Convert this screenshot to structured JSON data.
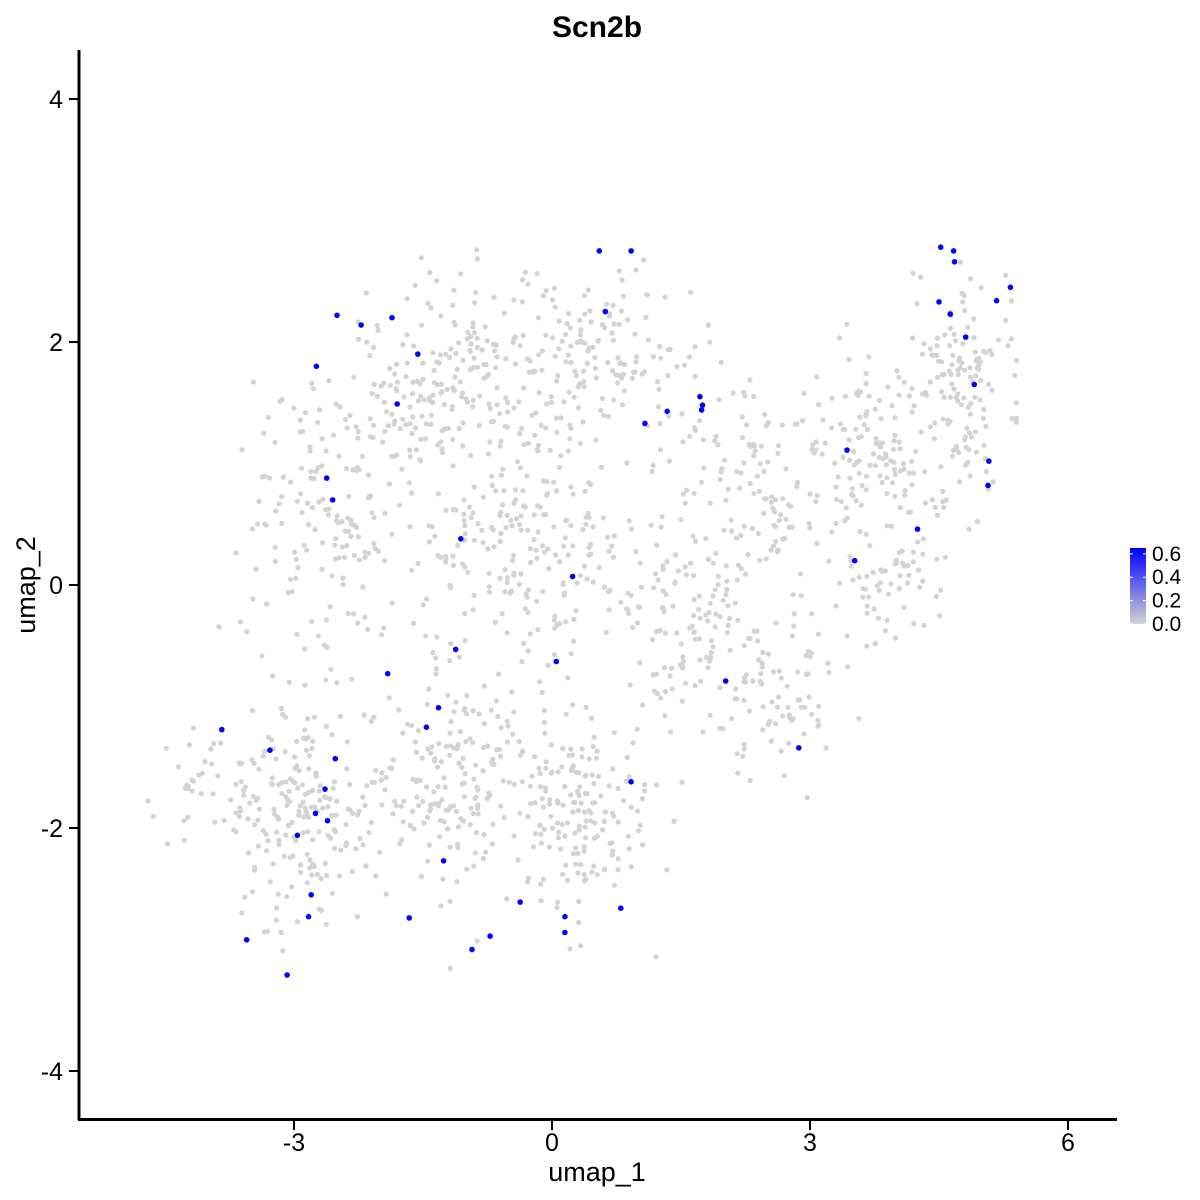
{
  "chart_data": {
    "type": "scatter",
    "title": "Scn2b",
    "xlabel": "umap_1",
    "ylabel": "umap_2",
    "xlim": [
      -5.5,
      6.6
    ],
    "ylim": [
      -4.35,
      4.4
    ],
    "xticks": [
      -3,
      0,
      3,
      6
    ],
    "xtick_labels": [
      "-3",
      "0",
      "3",
      "6"
    ],
    "yticks": [
      -4,
      -2,
      0,
      2,
      4
    ],
    "ytick_labels": [
      "-4",
      "-2",
      "0",
      "2",
      "4"
    ],
    "grid": false,
    "legend_position": "right",
    "color_scale": {
      "low": "#d3d3d3",
      "high": "#0000ff",
      "range": [
        0.0,
        0.65
      ],
      "breaks": [
        0.0,
        0.2,
        0.4,
        0.6
      ],
      "break_labels": [
        "0.0",
        "0.2",
        "0.4",
        "0.6"
      ]
    },
    "background_points": {
      "description_of_layout": "none",
      "color": "#d3d3d3",
      "value": 0.0,
      "clusters": [
        {
          "cx": -2.6,
          "cy": 0.5,
          "sx": 0.85,
          "sy": 1.05,
          "n": 170
        },
        {
          "cx": -1.2,
          "cy": 1.7,
          "sx": 1.0,
          "sy": 0.7,
          "n": 190
        },
        {
          "cx": 0.6,
          "cy": 1.9,
          "sx": 1.0,
          "sy": 0.6,
          "n": 150
        },
        {
          "cx": -0.3,
          "cy": 0.3,
          "sx": 1.2,
          "sy": 0.8,
          "n": 220
        },
        {
          "cx": -2.9,
          "cy": -1.9,
          "sx": 0.8,
          "sy": 0.75,
          "n": 200
        },
        {
          "cx": -1.1,
          "cy": -1.6,
          "sx": 0.9,
          "sy": 0.8,
          "n": 200
        },
        {
          "cx": 0.4,
          "cy": -1.9,
          "sx": 0.75,
          "sy": 0.7,
          "n": 160
        },
        {
          "cx": 1.6,
          "cy": -0.3,
          "sx": 0.8,
          "sy": 0.8,
          "n": 140
        },
        {
          "cx": 2.4,
          "cy": 0.9,
          "sx": 0.8,
          "sy": 0.6,
          "n": 110
        },
        {
          "cx": 2.6,
          "cy": -0.9,
          "sx": 0.7,
          "sy": 0.45,
          "n": 70
        },
        {
          "cx": 3.8,
          "cy": 1.2,
          "sx": 0.7,
          "sy": 0.75,
          "n": 130
        },
        {
          "cx": 4.8,
          "cy": 1.7,
          "sx": 0.45,
          "sy": 0.75,
          "n": 130
        },
        {
          "cx": 4.0,
          "cy": 0.0,
          "sx": 0.55,
          "sy": 0.45,
          "n": 60
        },
        {
          "cx": -4.2,
          "cy": -1.6,
          "sx": 0.35,
          "sy": 0.35,
          "n": 25
        }
      ],
      "seed": 7
    },
    "series": [
      {
        "color": "#0000ff",
        "value": 0.6,
        "points": [
          [
            0.55,
            2.75
          ],
          [
            0.92,
            2.75
          ],
          [
            0.62,
            2.25
          ],
          [
            -2.5,
            2.22
          ],
          [
            -2.22,
            2.14
          ],
          [
            -1.86,
            2.2
          ],
          [
            -2.74,
            1.8
          ],
          [
            -1.56,
            1.9
          ],
          [
            -1.8,
            1.49
          ],
          [
            1.72,
            1.55
          ],
          [
            1.75,
            1.48
          ],
          [
            1.74,
            1.44
          ],
          [
            1.34,
            1.43
          ],
          [
            1.08,
            1.33
          ],
          [
            -2.62,
            0.88
          ],
          [
            -2.55,
            0.7
          ],
          [
            -1.06,
            0.38
          ],
          [
            0.24,
            0.07
          ],
          [
            3.43,
            1.11
          ],
          [
            4.25,
            0.46
          ],
          [
            3.52,
            0.2
          ],
          [
            4.52,
            2.78
          ],
          [
            4.67,
            2.75
          ],
          [
            4.68,
            2.66
          ],
          [
            4.5,
            2.33
          ],
          [
            4.63,
            2.23
          ],
          [
            5.17,
            2.34
          ],
          [
            5.33,
            2.45
          ],
          [
            4.81,
            2.04
          ],
          [
            4.91,
            1.65
          ],
          [
            5.08,
            1.02
          ],
          [
            5.07,
            0.82
          ],
          [
            -1.12,
            -0.53
          ],
          [
            0.05,
            -0.63
          ],
          [
            -1.91,
            -0.73
          ],
          [
            2.02,
            -0.79
          ],
          [
            -1.32,
            -1.01
          ],
          [
            -1.46,
            -1.17
          ],
          [
            -3.84,
            -1.19
          ],
          [
            -3.28,
            -1.36
          ],
          [
            -2.52,
            -1.43
          ],
          [
            -2.64,
            -1.68
          ],
          [
            2.87,
            -1.34
          ],
          [
            0.92,
            -1.62
          ],
          [
            -2.75,
            -1.88
          ],
          [
            -2.61,
            -1.94
          ],
          [
            -2.96,
            -2.06
          ],
          [
            -1.26,
            -2.27
          ],
          [
            -2.8,
            -2.55
          ],
          [
            -0.37,
            -2.61
          ],
          [
            0.8,
            -2.66
          ],
          [
            0.15,
            -2.73
          ],
          [
            -1.66,
            -2.74
          ],
          [
            -2.83,
            -2.73
          ],
          [
            0.15,
            -2.86
          ],
          [
            -0.72,
            -2.89
          ],
          [
            -3.55,
            -2.92
          ],
          [
            -0.93,
            -3.0
          ],
          [
            -3.08,
            -3.21
          ]
        ]
      }
    ]
  }
}
